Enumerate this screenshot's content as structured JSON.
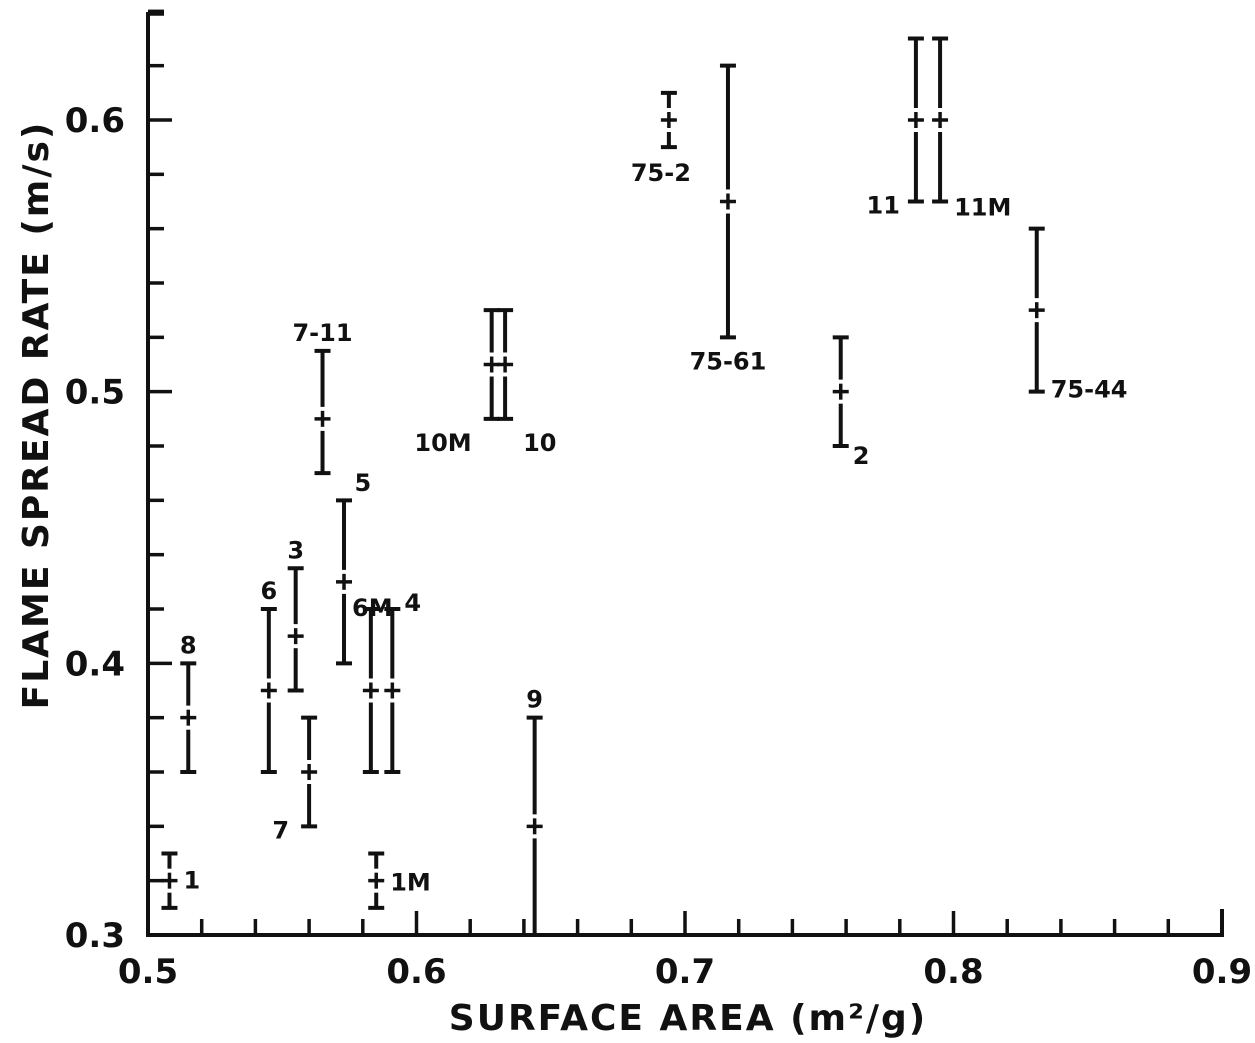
{
  "chart_data": {
    "type": "scatter",
    "title": "",
    "xlabel": "SURFACE AREA (m²/g)",
    "ylabel": "FLAME SPREAD RATE (m/s)",
    "xlim": [
      0.5,
      0.9
    ],
    "ylim": [
      0.3,
      0.64
    ],
    "x_ticks": [
      "0.5",
      "0.6",
      "0.7",
      "0.8",
      "0.9"
    ],
    "y_ticks": [
      "0.3",
      "0.4",
      "0.5",
      "0.6"
    ],
    "x_minor_step": 0.02,
    "y_minor_step": 0.02,
    "error_bars": "vertical",
    "points": [
      {
        "label": "1",
        "x": 0.508,
        "y": 0.32,
        "lo": 0.31,
        "hi": 0.33,
        "label_pos": "right"
      },
      {
        "label": "1M",
        "x": 0.585,
        "y": 0.32,
        "lo": 0.31,
        "hi": 0.33,
        "label_pos": "right"
      },
      {
        "label": "8",
        "x": 0.515,
        "y": 0.38,
        "lo": 0.36,
        "hi": 0.4,
        "label_pos": "top"
      },
      {
        "label": "6",
        "x": 0.545,
        "y": 0.39,
        "lo": 0.36,
        "hi": 0.42,
        "label_pos": "top"
      },
      {
        "label": "3",
        "x": 0.555,
        "y": 0.41,
        "lo": 0.39,
        "hi": 0.435,
        "label_pos": "top"
      },
      {
        "label": "7",
        "x": 0.56,
        "y": 0.36,
        "lo": 0.34,
        "hi": 0.38,
        "label_pos": "bottom-left"
      },
      {
        "label": "6M",
        "x": 0.573,
        "y": 0.43,
        "lo": 0.4,
        "hi": 0.46,
        "label_pos": "top"
      },
      {
        "label": "5",
        "x": 0.583,
        "y": 0.39,
        "lo": 0.36,
        "hi": 0.42,
        "label_pos": "none"
      },
      {
        "label": "4",
        "x": 0.591,
        "y": 0.39,
        "lo": 0.36,
        "hi": 0.42,
        "label_pos": "top-right"
      },
      {
        "label": "7-11",
        "x": 0.565,
        "y": 0.49,
        "lo": 0.47,
        "hi": 0.515,
        "label_pos": "top"
      },
      {
        "label": "10M",
        "x": 0.628,
        "y": 0.51,
        "lo": 0.49,
        "hi": 0.53,
        "label_pos": "left"
      },
      {
        "label": "10",
        "x": 0.633,
        "y": 0.51,
        "lo": 0.49,
        "hi": 0.53,
        "label_pos": "right"
      },
      {
        "label": "9",
        "x": 0.644,
        "y": 0.34,
        "lo": 0.3,
        "hi": 0.38,
        "label_pos": "top"
      },
      {
        "label": "75-2",
        "x": 0.694,
        "y": 0.6,
        "lo": 0.59,
        "hi": 0.61,
        "label_pos": "bottom"
      },
      {
        "label": "75-61",
        "x": 0.716,
        "y": 0.57,
        "lo": 0.52,
        "hi": 0.62,
        "label_pos": "bottom"
      },
      {
        "label": "2",
        "x": 0.758,
        "y": 0.5,
        "lo": 0.48,
        "hi": 0.52,
        "label_pos": "bottom-right"
      },
      {
        "label": "11",
        "x": 0.786,
        "y": 0.6,
        "lo": 0.57,
        "hi": 0.63,
        "label_pos": "bottom-left"
      },
      {
        "label": "11M",
        "x": 0.795,
        "y": 0.6,
        "lo": 0.57,
        "hi": 0.63,
        "label_pos": "bottom-right"
      },
      {
        "label": "75-44",
        "x": 0.831,
        "y": 0.53,
        "lo": 0.5,
        "hi": 0.56,
        "label_pos": "bottom-right"
      }
    ]
  }
}
